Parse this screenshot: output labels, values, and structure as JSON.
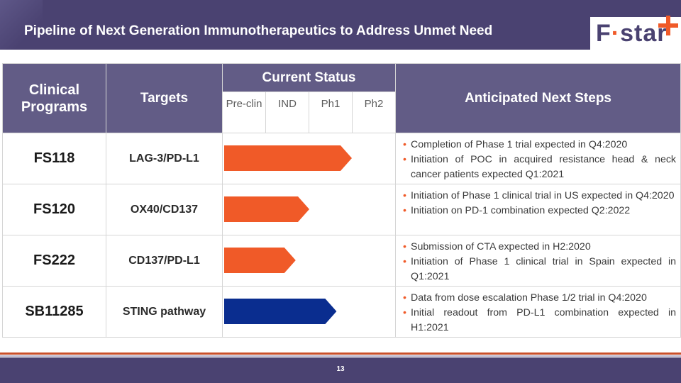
{
  "slide": {
    "title": "Pipeline of Next Generation Immunotherapeutics to Address Unmet Need",
    "page_number": "13"
  },
  "logo": {
    "prefix": "F",
    "dot": "·",
    "suffix": "star",
    "accent_color": "#f05a28"
  },
  "table": {
    "headers": {
      "programs": "Clinical Programs",
      "targets": "Targets",
      "status": "Current Status",
      "next_steps": "Anticipated Next Steps",
      "phases": [
        "Pre-clin",
        "IND",
        "Ph1",
        "Ph2"
      ]
    },
    "rows": [
      {
        "program": "FS118",
        "target": "LAG-3/PD-L1",
        "stage_progress": 0.75,
        "color": "#f05a28",
        "steps": [
          "Completion of Phase 1 trial expected in Q4:2020",
          "Initiation of POC in acquired resistance head & neck cancer patients expected Q1:2021"
        ]
      },
      {
        "program": "FS120",
        "target": "OX40/CD137",
        "stage_progress": 0.5,
        "color": "#f05a28",
        "steps": [
          "Initiation of Phase 1 clinical trial in US expected in Q4:2020",
          "Initiation on PD-1 combination expected Q2:2022"
        ]
      },
      {
        "program": "FS222",
        "target": "CD137/PD-L1",
        "stage_progress": 0.42,
        "color": "#f05a28",
        "steps": [
          "Submission of CTA expected in H2:2020",
          "Initiation of Phase 1 clinical trial in Spain expected in Q1:2021"
        ]
      },
      {
        "program": "SB11285",
        "target": "STING pathway",
        "stage_progress": 0.66,
        "color": "#0a2d8f",
        "steps": [
          "Data from dose escalation Phase 1/2 trial in Q4:2020",
          "Initial readout from PD-L1 combination expected in H1:2021"
        ]
      }
    ]
  }
}
